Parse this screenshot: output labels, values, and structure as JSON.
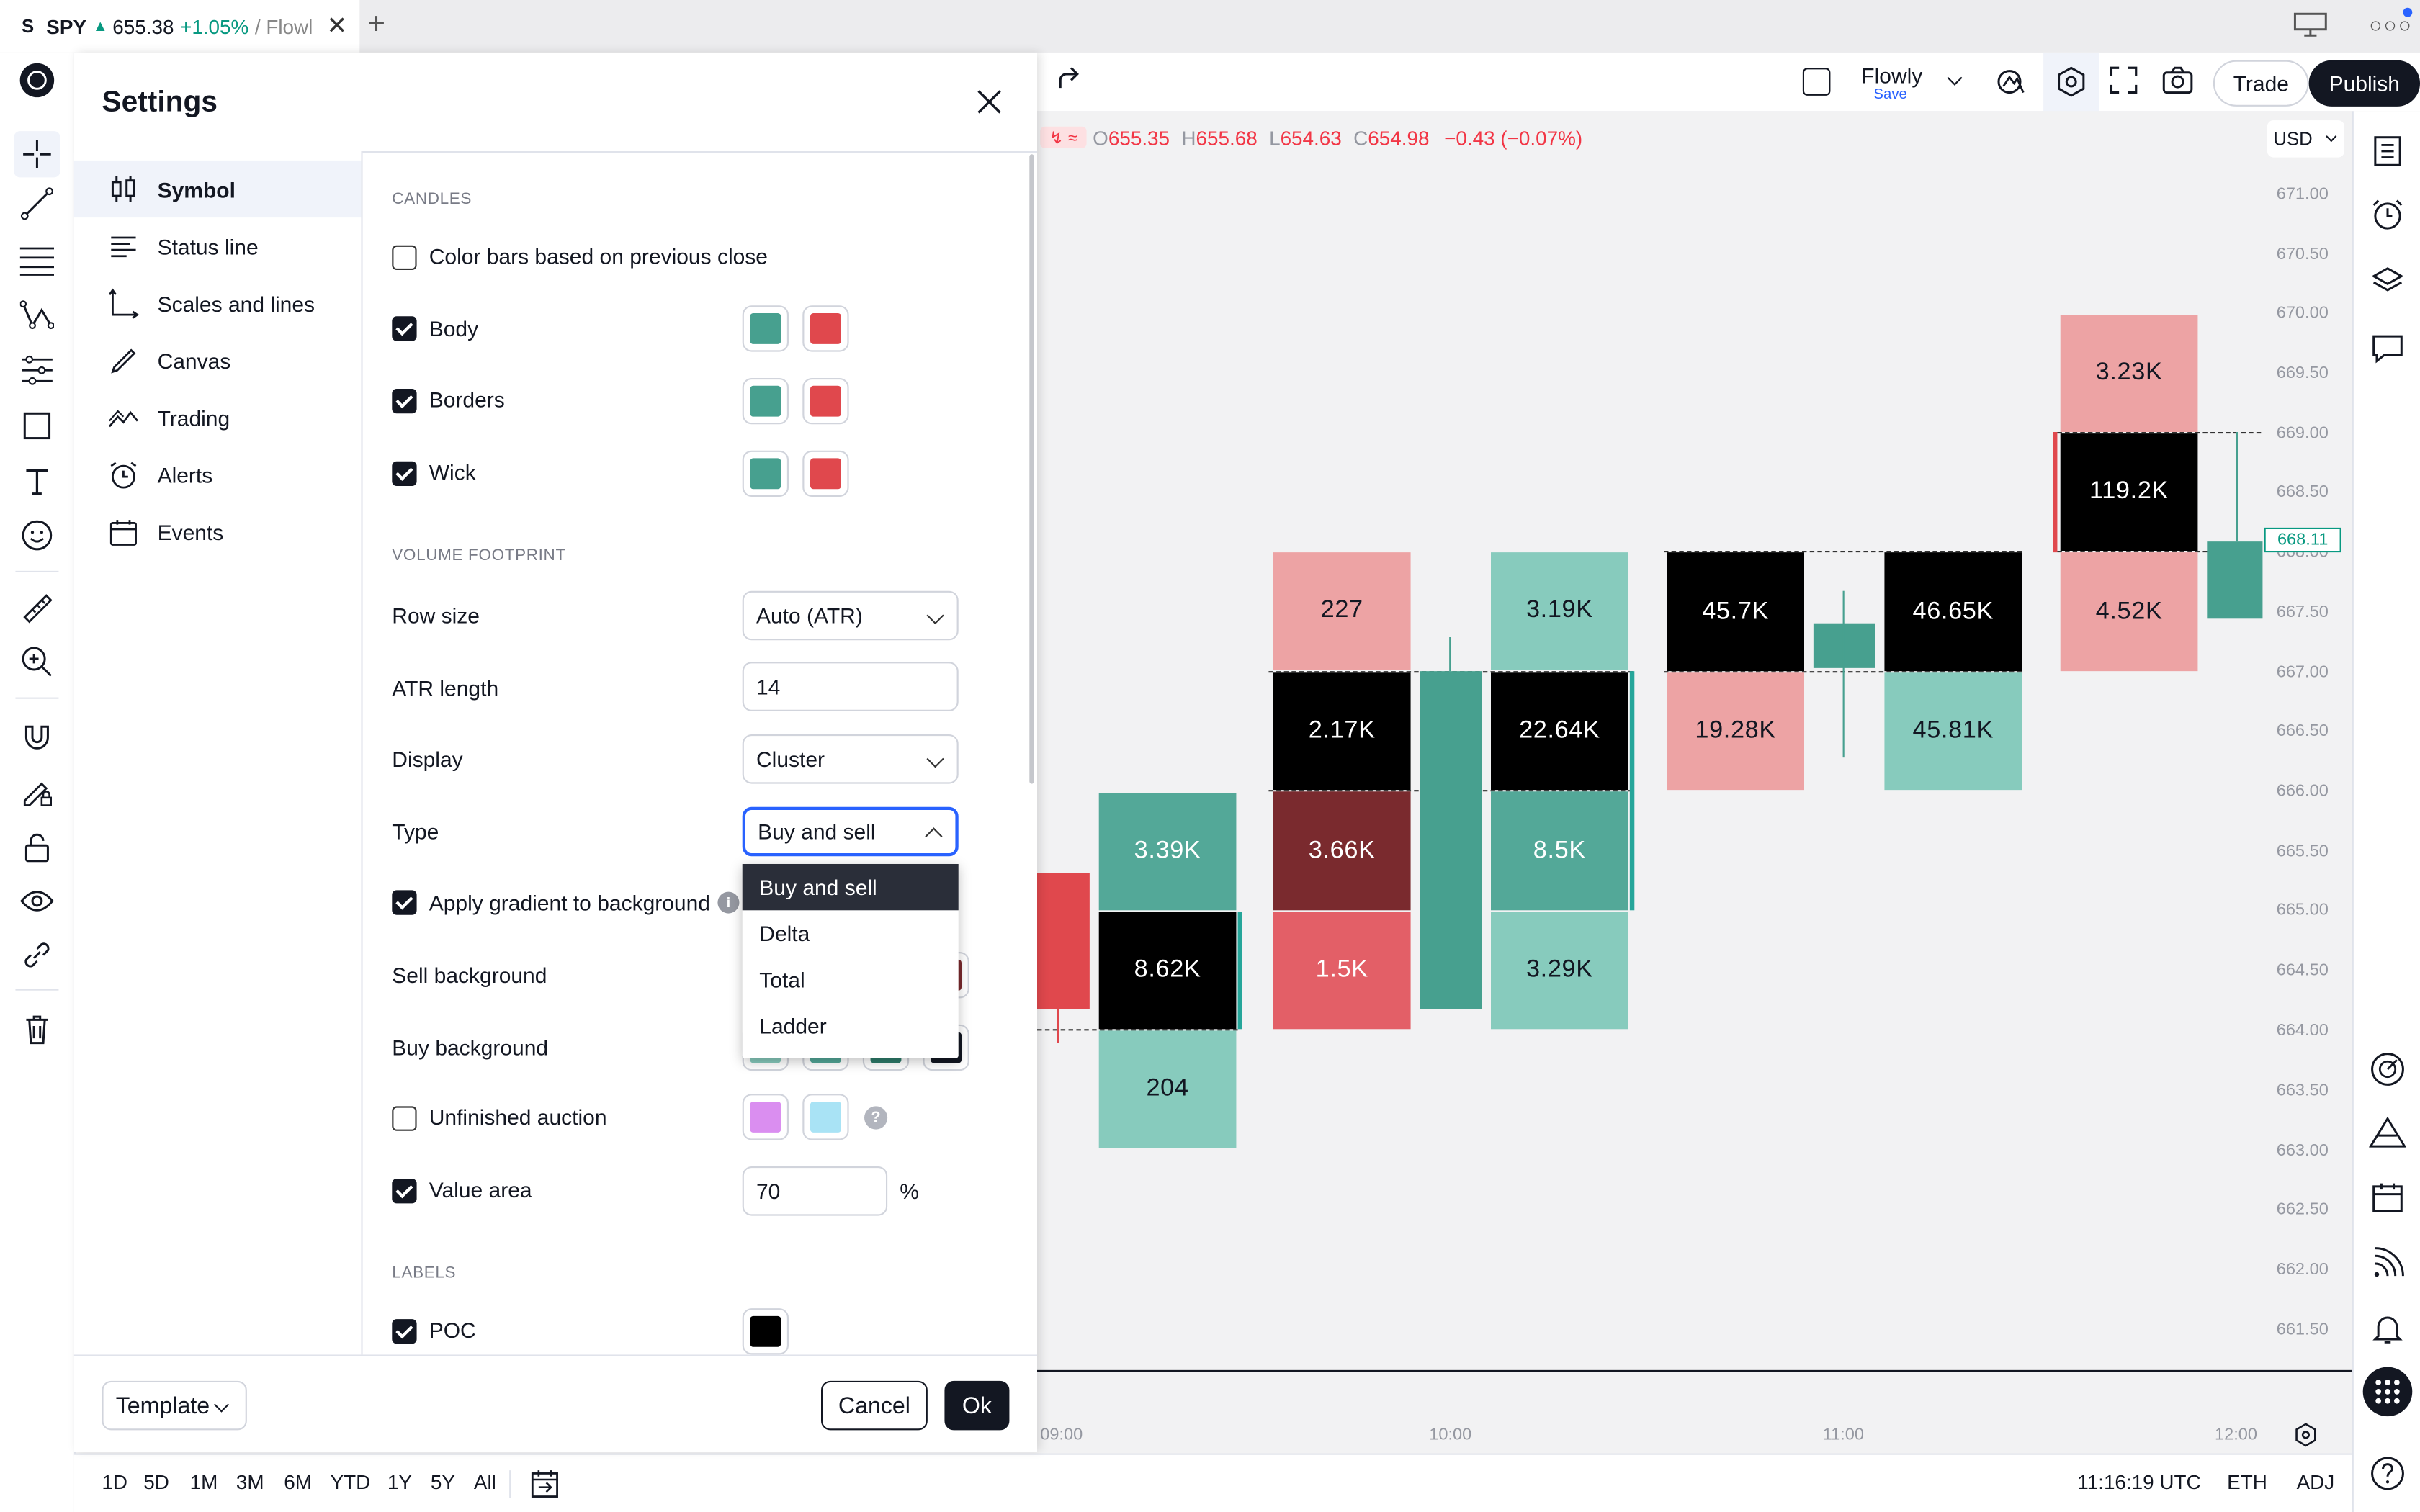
{
  "browser": {
    "tab_symbol": "SPY",
    "tab_price": "655.38",
    "tab_change": "+1.05%",
    "tab_rest": "/ Flowl",
    "new_tab": "+"
  },
  "topbar": {
    "layout_name": "Flowly",
    "layout_save": "Save",
    "trade_label": "Trade",
    "publish_label": "Publish"
  },
  "chart": {
    "ohlc": {
      "o_label": "O",
      "o": "655.35",
      "h_label": "H",
      "h": "655.68",
      "l_label": "L",
      "l": "654.63",
      "c_label": "C",
      "c": "654.98",
      "change": "−0.43 (−0.07%)"
    },
    "currency": "USD",
    "current_price": "668.11",
    "price_axis": [
      "671.00",
      "670.50",
      "670.00",
      "669.50",
      "669.00",
      "668.50",
      "668.00",
      "667.50",
      "667.00",
      "666.50",
      "666.00",
      "665.50",
      "665.00",
      "664.50",
      "664.00",
      "663.50",
      "663.00",
      "662.50",
      "662.00",
      "661.50"
    ],
    "time_axis": [
      "09:00",
      "10:00",
      "11:00",
      "12:00"
    ],
    "footprint_cells": [
      "3.39K",
      "8.62K",
      "204",
      "227",
      "2.17K",
      "3.66K",
      "1.5K",
      "3.19K",
      "22.64K",
      "8.5K",
      "3.29K",
      "45.7K",
      "19.28K",
      "46.65K",
      "45.81K",
      "3.23K",
      "119.2K",
      "4.52K"
    ],
    "colors": {
      "up": "#089981",
      "down": "#f23645",
      "sell_light": "#eda3a4",
      "buy_light": "#87cbbd",
      "buy_mid": "#53a898",
      "sell_mid": "#e35f67",
      "sell_dark": "#7a2a2e",
      "poc": "#000000"
    }
  },
  "bottombar": {
    "ranges": [
      "1D",
      "5D",
      "1M",
      "3M",
      "6M",
      "YTD",
      "1Y",
      "5Y",
      "All"
    ],
    "time": "11:16:19 UTC",
    "session": "ETH",
    "adj": "ADJ"
  },
  "settings": {
    "title": "Settings",
    "nav": [
      {
        "label": "Symbol",
        "icon": "candles-icon"
      },
      {
        "label": "Status line",
        "icon": "status-line-icon"
      },
      {
        "label": "Scales and lines",
        "icon": "scales-icon"
      },
      {
        "label": "Canvas",
        "icon": "brush-icon"
      },
      {
        "label": "Trading",
        "icon": "trading-icon"
      },
      {
        "label": "Alerts",
        "icon": "alarm-clock-icon"
      },
      {
        "label": "Events",
        "icon": "calendar-icon"
      }
    ],
    "sections": {
      "candles": "CANDLES",
      "volume_footprint": "VOLUME FOOTPRINT",
      "labels": "LABELS"
    },
    "candles": {
      "color_bars": "Color bars based on previous close",
      "body": "Body",
      "borders": "Borders",
      "wick": "Wick"
    },
    "footprint": {
      "row_size_label": "Row size",
      "row_size_value": "Auto (ATR)",
      "atr_length_label": "ATR length",
      "atr_length_value": "14",
      "display_label": "Display",
      "display_value": "Cluster",
      "type_label": "Type",
      "type_value": "Buy and sell",
      "type_options": [
        "Buy and sell",
        "Delta",
        "Total",
        "Ladder"
      ],
      "gradient_label": "Apply gradient to background",
      "sell_bg_label": "Sell background",
      "buy_bg_label": "Buy background",
      "unfinished_label": "Unfinished auction",
      "help": "?",
      "value_area_label": "Value area",
      "value_area_value": "70",
      "value_area_unit": "%"
    },
    "labels": {
      "poc": "POC"
    },
    "footer": {
      "template": "Template",
      "cancel": "Cancel",
      "ok": "Ok"
    }
  }
}
